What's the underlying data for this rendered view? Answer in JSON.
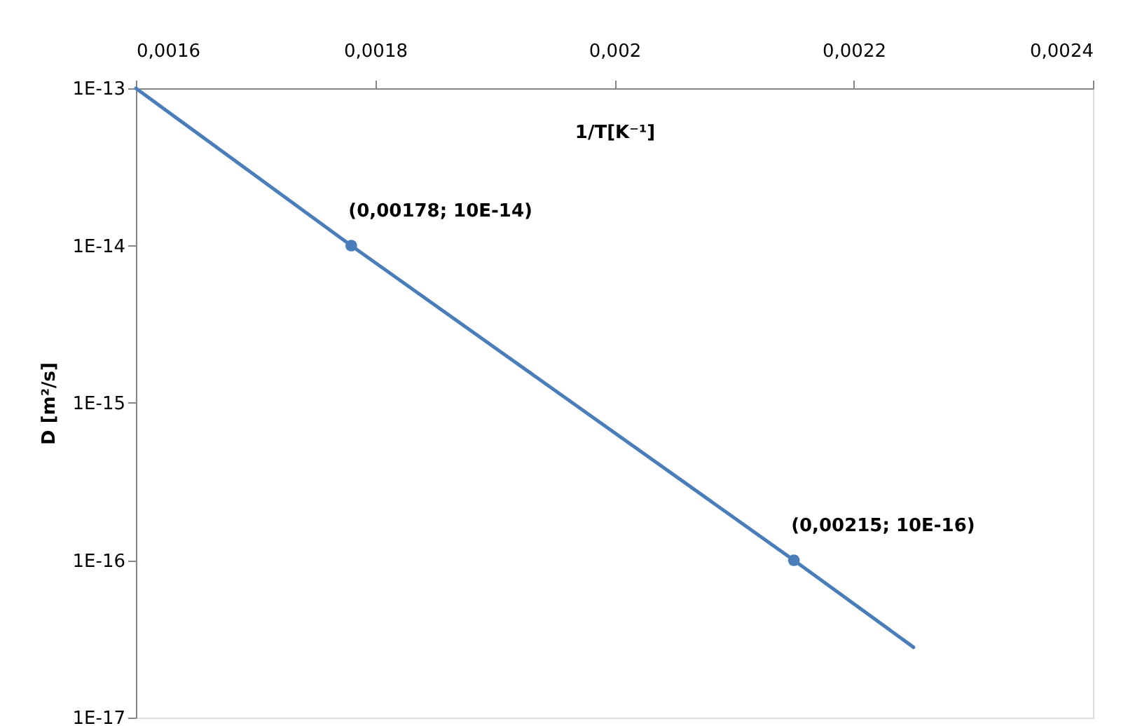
{
  "chart_data": {
    "type": "line",
    "xlabel": "1/T[K⁻¹]",
    "ylabel": "D [m²/s]",
    "log": "y",
    "grid": false,
    "xlim": [
      0.0016,
      0.0024
    ],
    "xticks": [
      {
        "value": 0.0016,
        "label": "0,0016"
      },
      {
        "value": 0.0018,
        "label": "0,0018"
      },
      {
        "value": 0.002,
        "label": "0,002"
      },
      {
        "value": 0.0022,
        "label": "0,0022"
      },
      {
        "value": 0.0024,
        "label": "0,0024"
      }
    ],
    "ylim": [
      1e-17,
      1e-13
    ],
    "yticks": [
      {
        "value": 1e-17,
        "label": "1E-17"
      },
      {
        "value": 1e-16,
        "label": "1E-16"
      },
      {
        "value": 1e-15,
        "label": "1E-15"
      },
      {
        "value": 1e-14,
        "label": "1E-14"
      },
      {
        "value": 1e-13,
        "label": "1E-13"
      }
    ],
    "series": [
      {
        "color": "#4a7ebb",
        "marker": "none",
        "x": [
          0.0016,
          0.00178,
          0.00215,
          0.00225
        ],
        "values": [
          1e-13,
          1e-14,
          1e-16,
          2.8e-17
        ]
      },
      {
        "type": "scatter",
        "color": "#4a7ebb",
        "marker": "circle",
        "x": [
          0.00178,
          0.00215
        ],
        "values": [
          1e-14,
          1e-16
        ]
      }
    ],
    "annotations": [
      {
        "text": "(0,00178; 10E-14)",
        "x": 0.00178,
        "y": 1e-14
      },
      {
        "text": "(0,00215; 10E-16)",
        "x": 0.00215,
        "y": 1e-16
      }
    ]
  }
}
